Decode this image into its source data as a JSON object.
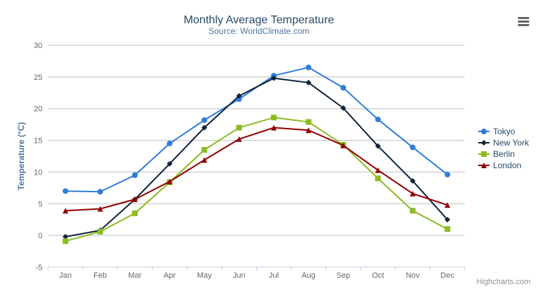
{
  "chart_data": {
    "type": "line",
    "title": "Monthly Average Temperature",
    "subtitle": "Source: WorldClimate.com",
    "xlabel": "",
    "ylabel": "Temperature (°C)",
    "categories": [
      "Jan",
      "Feb",
      "Mar",
      "Apr",
      "May",
      "Jun",
      "Jul",
      "Aug",
      "Sep",
      "Oct",
      "Nov",
      "Dec"
    ],
    "ylim": [
      -5,
      30
    ],
    "yticks": [
      -5,
      0,
      5,
      10,
      15,
      20,
      25,
      30
    ],
    "grid": true,
    "legend_placement": "right",
    "series": [
      {
        "name": "Tokyo",
        "color": "#2f7ed8",
        "marker": "circle",
        "values": [
          7.0,
          6.9,
          9.5,
          14.5,
          18.2,
          21.5,
          25.2,
          26.5,
          23.3,
          18.3,
          13.9,
          9.6
        ]
      },
      {
        "name": "New York",
        "color": "#0d233a",
        "marker": "diamond",
        "values": [
          -0.2,
          0.8,
          5.7,
          11.3,
          17.0,
          22.0,
          24.8,
          24.1,
          20.1,
          14.1,
          8.6,
          2.5
        ]
      },
      {
        "name": "Berlin",
        "color": "#8bbc21",
        "marker": "square",
        "values": [
          -0.9,
          0.6,
          3.5,
          8.4,
          13.5,
          17.0,
          18.6,
          17.9,
          14.3,
          9.0,
          3.9,
          1.0
        ]
      },
      {
        "name": "London",
        "color": "#910000",
        "marker": "triangle",
        "values": [
          3.9,
          4.2,
          5.7,
          8.5,
          11.9,
          15.2,
          17.0,
          16.6,
          14.2,
          10.3,
          6.6,
          4.8
        ]
      }
    ]
  },
  "credits": "Highcharts.com",
  "menu_icon": "hamburger-menu-icon"
}
